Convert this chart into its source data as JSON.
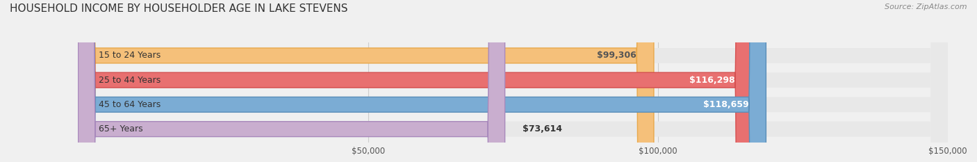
{
  "title": "HOUSEHOLD INCOME BY HOUSEHOLDER AGE IN LAKE STEVENS",
  "source": "Source: ZipAtlas.com",
  "categories": [
    "15 to 24 Years",
    "25 to 44 Years",
    "45 to 64 Years",
    "65+ Years"
  ],
  "values": [
    99306,
    116298,
    118659,
    73614
  ],
  "value_labels": [
    "$99,306",
    "$116,298",
    "$118,659",
    "$73,614"
  ],
  "bar_colors": [
    "#F5C07A",
    "#E87070",
    "#7BACD4",
    "#C9AECF"
  ],
  "bar_edge_colors": [
    "#E8A84A",
    "#D45050",
    "#5A8EB8",
    "#A889BC"
  ],
  "label_colors": [
    "#555555",
    "#ffffff",
    "#ffffff",
    "#555555"
  ],
  "xlim": [
    0,
    150000
  ],
  "xticks": [
    50000,
    100000,
    150000
  ],
  "xticklabels": [
    "$50,000",
    "$100,000",
    "$150,000"
  ],
  "background_color": "#f0f0f0",
  "bar_bg_color": "#e8e8e8",
  "title_fontsize": 11,
  "source_fontsize": 8,
  "label_fontsize": 9,
  "tick_fontsize": 8.5
}
